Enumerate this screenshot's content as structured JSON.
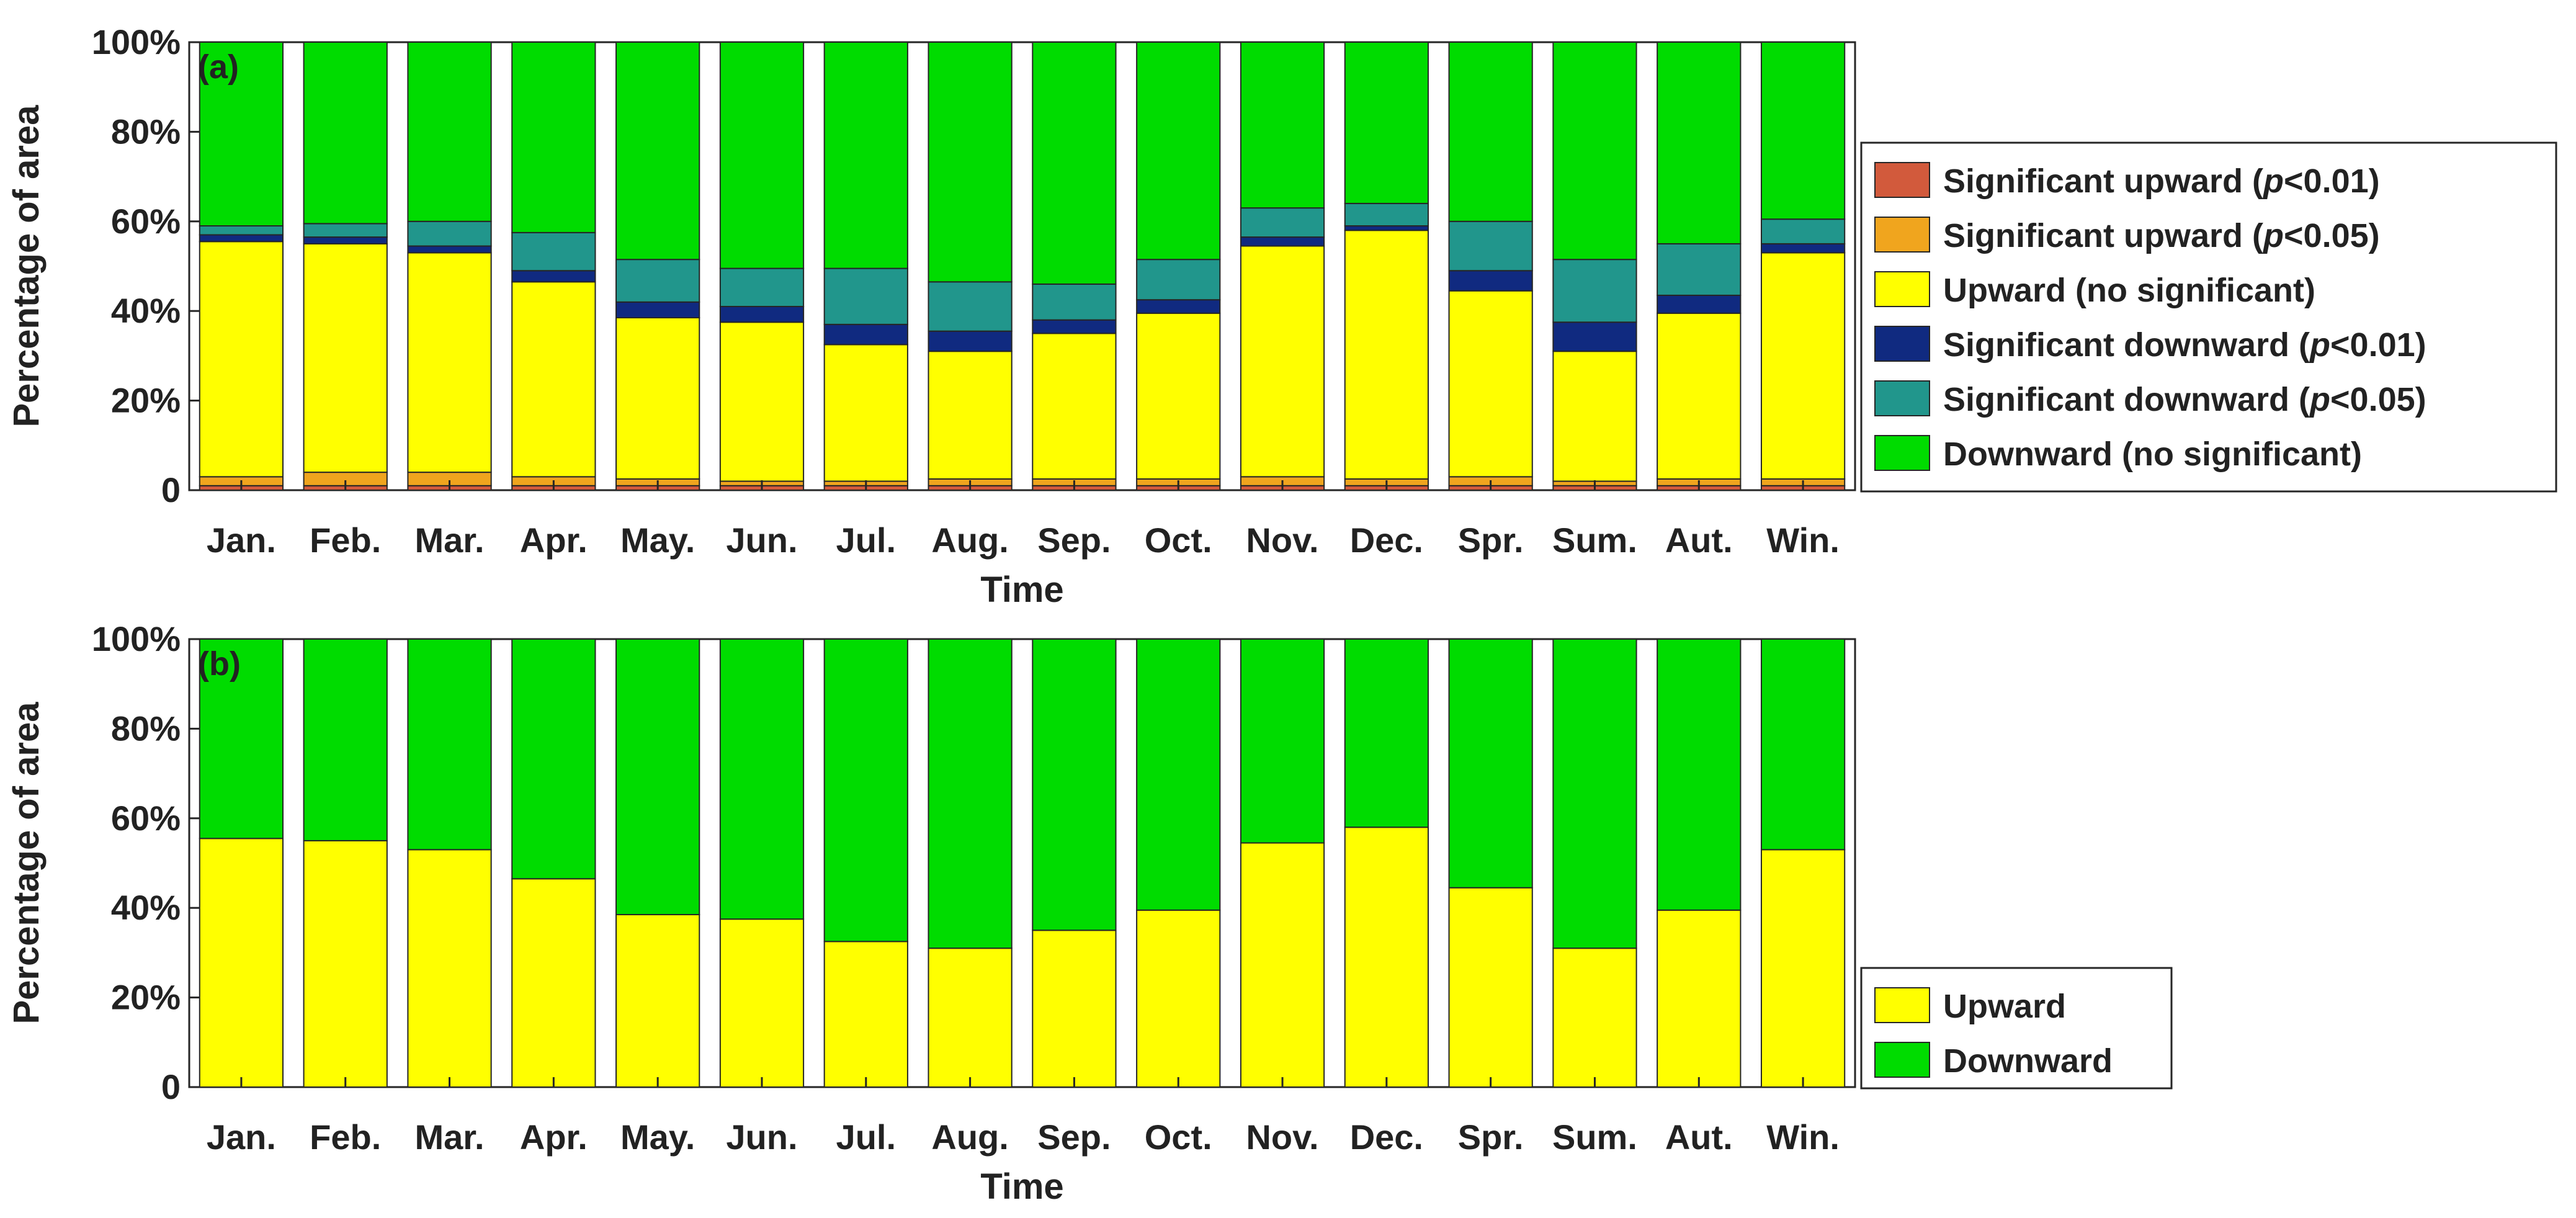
{
  "chart_data": [
    {
      "type": "bar",
      "stacked": true,
      "panel_label": "(a)",
      "xlabel": "Time",
      "ylabel": "Percentage of area",
      "ylim": [
        0,
        100
      ],
      "yticks": [
        "0",
        "20%",
        "40%",
        "60%",
        "80%",
        "100%"
      ],
      "categories": [
        "Jan.",
        "Feb.",
        "Mar.",
        "Apr.",
        "May.",
        "Jun.",
        "Jul.",
        "Aug.",
        "Sep.",
        "Oct.",
        "Nov.",
        "Dec.",
        "Spr.",
        "Sum.",
        "Aut.",
        "Win."
      ],
      "series": [
        {
          "name": "Significant upward",
          "p": "0.01",
          "color": "#d25a3c",
          "values": [
            1,
            1,
            1,
            1,
            1,
            1,
            1,
            1,
            1,
            1,
            1,
            1,
            1,
            1,
            1,
            1
          ]
        },
        {
          "name": "Significant upward",
          "p": "0.05",
          "color": "#f0a51e",
          "values": [
            2,
            3,
            3,
            2,
            1.5,
            1,
            1,
            1.5,
            1.5,
            1.5,
            2,
            1.5,
            2,
            1,
            1.5,
            1.5
          ]
        },
        {
          "name": "Upward (no significant)",
          "color": "#ffff00",
          "values": [
            52.5,
            51,
            49,
            43.5,
            36,
            35.5,
            30.5,
            28.5,
            32.5,
            37,
            51.5,
            55.5,
            41.5,
            29,
            37,
            50.5
          ]
        },
        {
          "name": "Significant downward",
          "p": "0.01",
          "color": "#102a80",
          "values": [
            1.5,
            1.5,
            1.5,
            2.5,
            3.5,
            3.5,
            4.5,
            4.5,
            3,
            3,
            2,
            1,
            4.5,
            6.5,
            4,
            2
          ]
        },
        {
          "name": "Significant downward",
          "p": "0.05",
          "color": "#21968c",
          "values": [
            2,
            3,
            5.5,
            8.5,
            9.5,
            8.5,
            12.5,
            11,
            8,
            9,
            6.5,
            5,
            11,
            14,
            11.5,
            5.5
          ]
        },
        {
          "name": "Downward (no significant)",
          "color": "#00dc00",
          "values": [
            41,
            40.5,
            40,
            42.5,
            48.5,
            50.5,
            50.5,
            53.5,
            54,
            48.5,
            37,
            36,
            40,
            48.5,
            45,
            39.5
          ]
        }
      ],
      "legend": [
        {
          "label": "Significant upward (",
          "italic": "p",
          "suffix": "<0.01)"
        },
        {
          "label": "Significant upward (",
          "italic": "p",
          "suffix": "<0.05)"
        },
        {
          "label": "Upward (no significant)",
          "italic": "",
          "suffix": ""
        },
        {
          "label": "Significant downward (",
          "italic": "p",
          "suffix": "<0.01)"
        },
        {
          "label": "Significant downward (",
          "italic": "p",
          "suffix": "<0.05)"
        },
        {
          "label": "Downward (no significant)",
          "italic": "",
          "suffix": ""
        }
      ],
      "legend_placement": "right"
    },
    {
      "type": "bar",
      "stacked": true,
      "panel_label": "(b)",
      "xlabel": "Time",
      "ylabel": "Percentage of area",
      "ylim": [
        0,
        100
      ],
      "yticks": [
        "0",
        "20%",
        "40%",
        "60%",
        "80%",
        "100%"
      ],
      "categories": [
        "Jan.",
        "Feb.",
        "Mar.",
        "Apr.",
        "May.",
        "Jun.",
        "Jul.",
        "Aug.",
        "Sep.",
        "Oct.",
        "Nov.",
        "Dec.",
        "Spr.",
        "Sum.",
        "Aut.",
        "Win."
      ],
      "series": [
        {
          "name": "Upward",
          "color": "#ffff00",
          "values": [
            55.5,
            55,
            53,
            46.5,
            38.5,
            37.5,
            32.5,
            31,
            35,
            39.5,
            54.5,
            58,
            44.5,
            31,
            39.5,
            53
          ]
        },
        {
          "name": "Downward",
          "color": "#00dc00",
          "values": [
            44.5,
            45,
            47,
            53.5,
            61.5,
            62.5,
            67.5,
            69,
            65,
            60.5,
            45.5,
            42,
            55.5,
            69,
            60.5,
            47
          ]
        }
      ],
      "legend": [
        {
          "label": "Upward",
          "italic": "",
          "suffix": ""
        },
        {
          "label": "Downward",
          "italic": "",
          "suffix": ""
        }
      ],
      "legend_placement": "right"
    }
  ]
}
